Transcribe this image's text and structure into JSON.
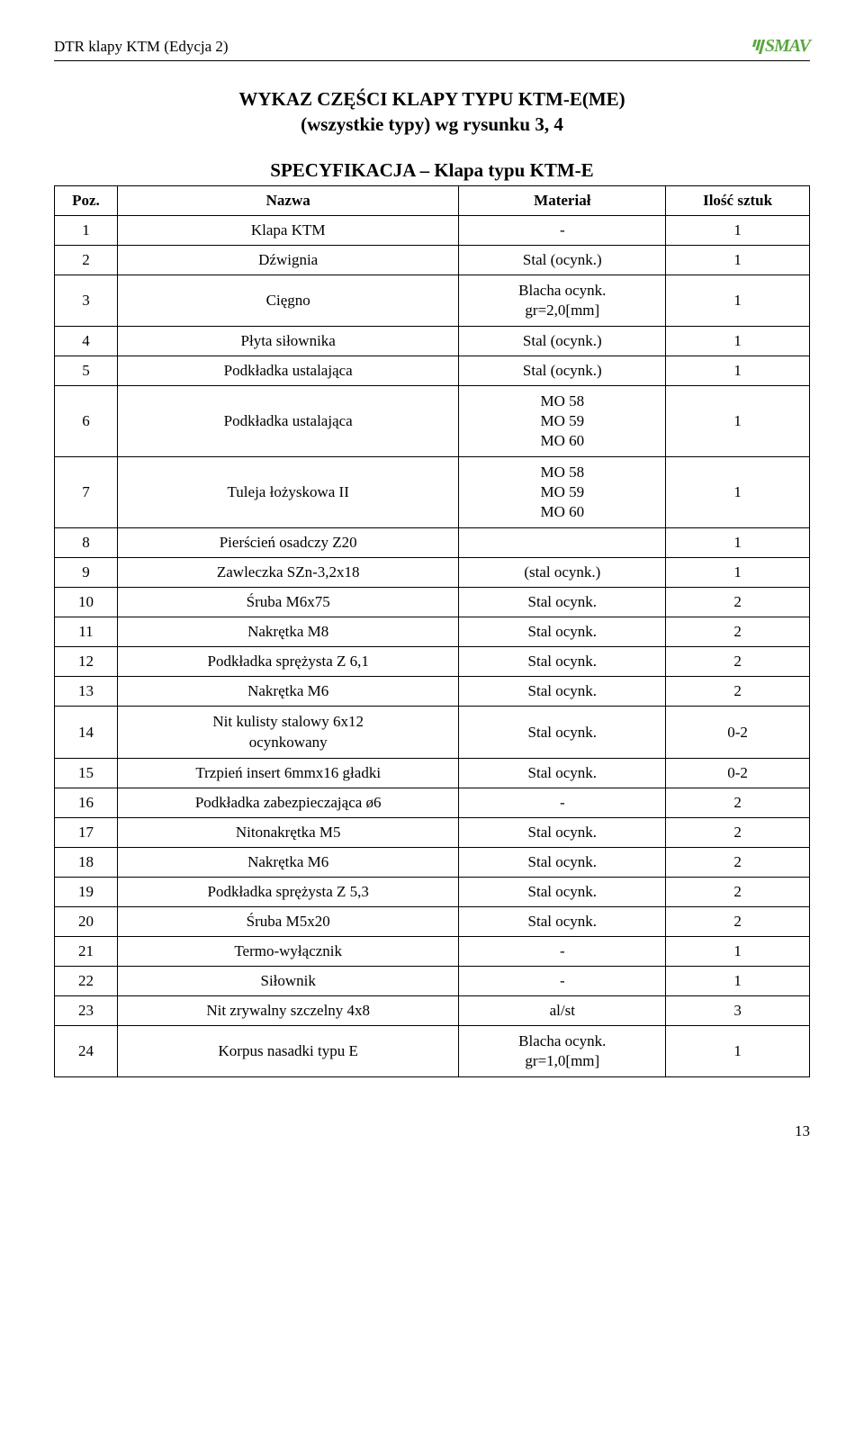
{
  "header": {
    "doc_title": "DTR klapy KTM (Edycja 2)",
    "logo_text": "SMAV",
    "logo_color": "#5aa63f"
  },
  "title_line1": "WYKAZ CZĘŚCI KLAPY TYPU KTM-E(ME)",
  "title_line2": "(wszystkie typy) wg rysunku 3, 4",
  "spec_title": "SPECYFIKACJA – Klapa typu KTM-E",
  "columns": {
    "c1": "Poz.",
    "c2": "Nazwa",
    "c3": "Materiał",
    "c4": "Ilość sztuk"
  },
  "rows": [
    {
      "poz": "1",
      "nazwa": "Klapa KTM",
      "material": "-",
      "qty": "1"
    },
    {
      "poz": "2",
      "nazwa": "Dźwignia",
      "material": "Stal (ocynk.)",
      "qty": "1"
    },
    {
      "poz": "3",
      "nazwa": "Cięgno",
      "material": "Blacha ocynk.\ngr=2,0[mm]",
      "qty": "1"
    },
    {
      "poz": "4",
      "nazwa": "Płyta siłownika",
      "material": "Stal (ocynk.)",
      "qty": "1"
    },
    {
      "poz": "5",
      "nazwa": "Podkładka ustalająca",
      "material": "Stal (ocynk.)",
      "qty": "1"
    },
    {
      "poz": "6",
      "nazwa": "Podkładka ustalająca",
      "material": "MO 58\nMO 59\nMO 60",
      "qty": "1"
    },
    {
      "poz": "7",
      "nazwa": "Tuleja łożyskowa II",
      "material": "MO 58\nMO 59\nMO 60",
      "qty": "1"
    },
    {
      "poz": "8",
      "nazwa": "Pierścień osadczy Z20",
      "material": "",
      "qty": "1"
    },
    {
      "poz": "9",
      "nazwa": "Zawleczka SZn-3,2x18",
      "material": "(stal ocynk.)",
      "qty": "1"
    },
    {
      "poz": "10",
      "nazwa": "Śruba M6x75",
      "material": "Stal ocynk.",
      "qty": "2"
    },
    {
      "poz": "11",
      "nazwa": "Nakrętka M8",
      "material": "Stal ocynk.",
      "qty": "2"
    },
    {
      "poz": "12",
      "nazwa": "Podkładka sprężysta Z 6,1",
      "material": "Stal ocynk.",
      "qty": "2"
    },
    {
      "poz": "13",
      "nazwa": "Nakrętka M6",
      "material": "Stal ocynk.",
      "qty": "2"
    },
    {
      "poz": "14",
      "nazwa": "Nit kulisty stalowy 6x12\nocynkowany",
      "material": "Stal ocynk.",
      "qty": "0-2"
    },
    {
      "poz": "15",
      "nazwa": "Trzpień insert 6mmx16 gładki",
      "material": "Stal ocynk.",
      "qty": "0-2"
    },
    {
      "poz": "16",
      "nazwa": "Podkładka zabezpieczająca ø6",
      "material": "-",
      "qty": "2"
    },
    {
      "poz": "17",
      "nazwa": "Nitonakrętka M5",
      "material": "Stal ocynk.",
      "qty": "2"
    },
    {
      "poz": "18",
      "nazwa": "Nakrętka M6",
      "material": "Stal ocynk.",
      "qty": "2"
    },
    {
      "poz": "19",
      "nazwa": "Podkładka sprężysta Z 5,3",
      "material": "Stal ocynk.",
      "qty": "2"
    },
    {
      "poz": "20",
      "nazwa": "Śruba M5x20",
      "material": "Stal ocynk.",
      "qty": "2"
    },
    {
      "poz": "21",
      "nazwa": "Termo-wyłącznik",
      "material": "-",
      "qty": "1"
    },
    {
      "poz": "22",
      "nazwa": "Siłownik",
      "material": "-",
      "qty": "1"
    },
    {
      "poz": "23",
      "nazwa": "Nit zrywalny szczelny 4x8",
      "material": "al/st",
      "qty": "3"
    },
    {
      "poz": "24",
      "nazwa": "Korpus nasadki typu E",
      "material": "Blacha ocynk.\ngr=1,0[mm]",
      "qty": "1"
    }
  ],
  "page_number": "13"
}
